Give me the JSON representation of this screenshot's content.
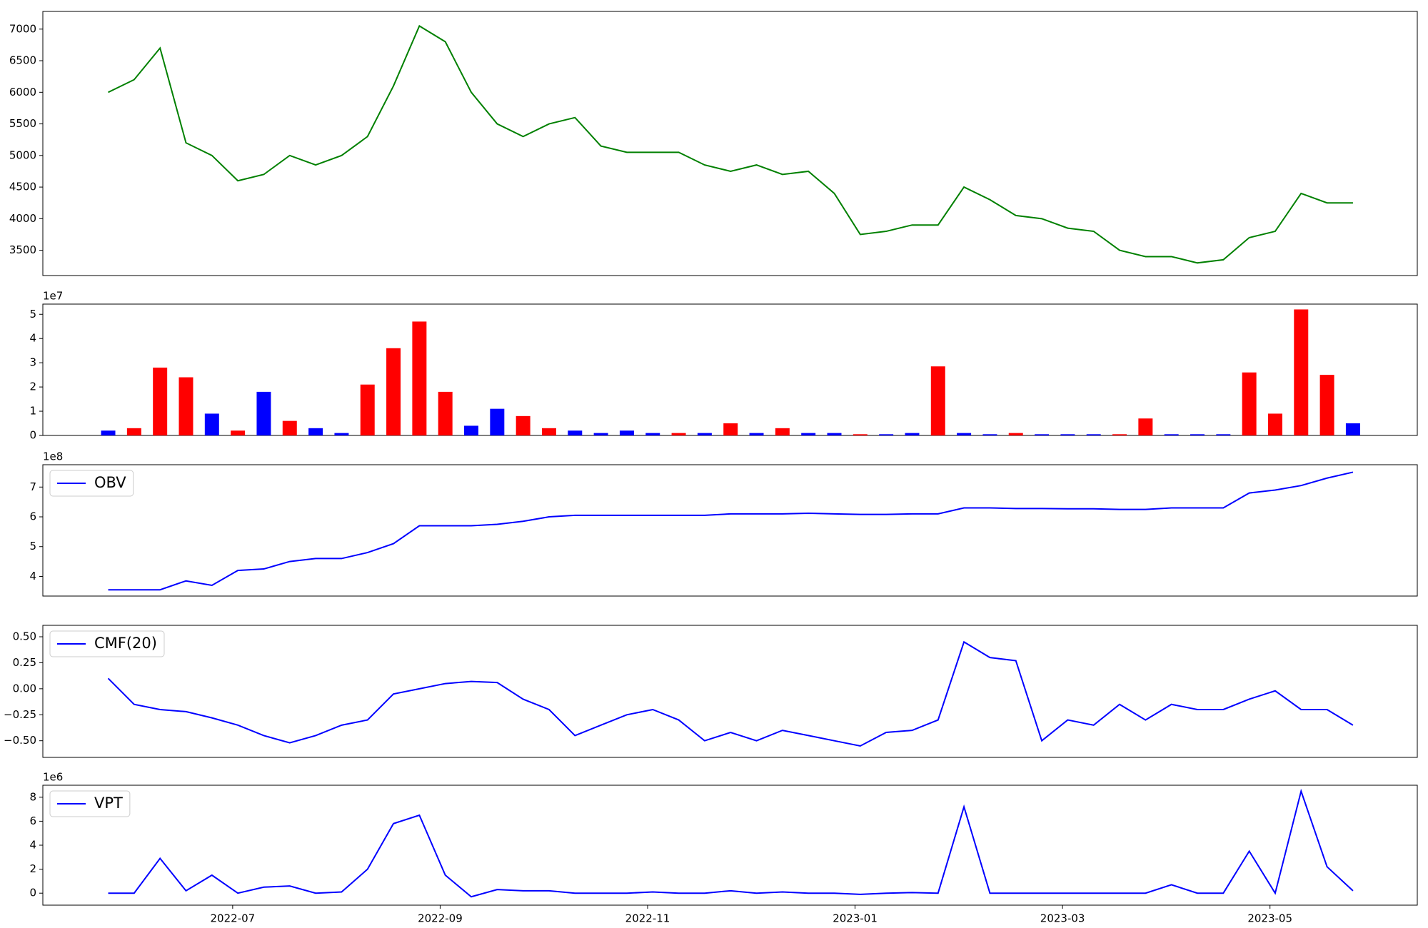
{
  "chart_data": [
    {
      "type": "line",
      "x": [
        5.8,
        6.05,
        6.3,
        6.55,
        6.8,
        7.05,
        7.3,
        7.55,
        7.8,
        8.05,
        8.3,
        8.55,
        8.8,
        9.05,
        9.3,
        9.55,
        9.8,
        10.05,
        10.3,
        10.55,
        10.8,
        11.05,
        11.3,
        11.55,
        11.8,
        12.05,
        12.3,
        12.55,
        12.8,
        13.05,
        13.3,
        13.55,
        13.8,
        14.05,
        14.3,
        14.55,
        14.8,
        15.05,
        15.3,
        15.55,
        15.8,
        16.05,
        16.3,
        16.55,
        16.8,
        17.05,
        17.3,
        17.55,
        17.8
      ],
      "series": [
        {
          "color": "green",
          "values": [
            6000,
            6200,
            6700,
            5200,
            5000,
            4600,
            4700,
            5000,
            4850,
            5000,
            5300,
            6100,
            7050,
            6800,
            6000,
            5500,
            5300,
            5500,
            5600,
            5150,
            5050,
            5050,
            5050,
            4850,
            4750,
            4850,
            4700,
            4750,
            4400,
            3750,
            3800,
            3900,
            3900,
            4500,
            4300,
            4050,
            4000,
            3850,
            3800,
            3500,
            3400,
            3400,
            3300,
            3350,
            3700,
            3800,
            4400,
            4250,
            4250
          ]
        }
      ],
      "xlim": [
        5.17,
        18.42
      ],
      "ylim": [
        3100,
        7280
      ],
      "yticks": [
        3500,
        4000,
        4500,
        5000,
        5500,
        6000,
        6500,
        7000
      ]
    },
    {
      "type": "bar",
      "offset_label": "1e7",
      "x": [
        5.8,
        6.05,
        6.3,
        6.55,
        6.8,
        7.05,
        7.3,
        7.55,
        7.8,
        8.05,
        8.3,
        8.55,
        8.8,
        9.05,
        9.3,
        9.55,
        9.8,
        10.05,
        10.3,
        10.55,
        10.8,
        11.05,
        11.3,
        11.55,
        11.8,
        12.05,
        12.3,
        12.55,
        12.8,
        13.05,
        13.3,
        13.55,
        13.8,
        14.05,
        14.3,
        14.55,
        14.8,
        15.05,
        15.3,
        15.55,
        15.8,
        16.05,
        16.3,
        16.55,
        16.8,
        17.05,
        17.3,
        17.55,
        17.8
      ],
      "values": [
        0.2,
        0.3,
        2.8,
        2.4,
        0.9,
        0.2,
        1.8,
        0.6,
        0.3,
        0.1,
        2.1,
        3.6,
        4.7,
        1.8,
        0.4,
        1.1,
        0.8,
        0.3,
        0.2,
        0.1,
        0.2,
        0.1,
        0.1,
        0.1,
        0.5,
        0.1,
        0.3,
        0.1,
        0.1,
        0.05,
        0.05,
        0.1,
        2.85,
        0.1,
        0.05,
        0.1,
        0.05,
        0.05,
        0.05,
        0.05,
        0.7,
        0.05,
        0.05,
        0.05,
        2.6,
        0.9,
        5.2,
        2.5,
        0.5
      ],
      "colors": [
        "blue",
        "red",
        "red",
        "red",
        "blue",
        "red",
        "blue",
        "red",
        "blue",
        "blue",
        "red",
        "red",
        "red",
        "red",
        "blue",
        "blue",
        "red",
        "red",
        "blue",
        "blue",
        "blue",
        "blue",
        "red",
        "blue",
        "red",
        "blue",
        "red",
        "blue",
        "blue",
        "red",
        "blue",
        "blue",
        "red",
        "blue",
        "blue",
        "red",
        "blue",
        "blue",
        "blue",
        "red",
        "red",
        "blue",
        "blue",
        "blue",
        "red",
        "red",
        "red",
        "red",
        "blue"
      ],
      "xlim": [
        5.17,
        18.42
      ],
      "ylim": [
        0,
        5.42
      ],
      "yticks": [
        0,
        1,
        2,
        3,
        4,
        5
      ]
    },
    {
      "type": "line",
      "offset_label": "1e8",
      "legend": "upper left",
      "x": [
        5.8,
        6.05,
        6.3,
        6.55,
        6.8,
        7.05,
        7.3,
        7.55,
        7.8,
        8.05,
        8.3,
        8.55,
        8.8,
        9.05,
        9.3,
        9.55,
        9.8,
        10.05,
        10.3,
        10.55,
        10.8,
        11.05,
        11.3,
        11.55,
        11.8,
        12.05,
        12.3,
        12.55,
        12.8,
        13.05,
        13.3,
        13.55,
        13.8,
        14.05,
        14.3,
        14.55,
        14.8,
        15.05,
        15.3,
        15.55,
        15.8,
        16.05,
        16.3,
        16.55,
        16.8,
        17.05,
        17.3,
        17.55,
        17.8
      ],
      "series": [
        {
          "name": "OBV",
          "color": "blue",
          "values": [
            3.55,
            3.55,
            3.55,
            3.85,
            3.7,
            4.2,
            4.25,
            4.5,
            4.6,
            4.6,
            4.8,
            5.1,
            5.7,
            5.7,
            5.7,
            5.75,
            5.85,
            6.0,
            6.05,
            6.05,
            6.05,
            6.05,
            6.05,
            6.05,
            6.1,
            6.1,
            6.1,
            6.12,
            6.1,
            6.08,
            6.08,
            6.1,
            6.1,
            6.3,
            6.3,
            6.28,
            6.28,
            6.27,
            6.27,
            6.25,
            6.25,
            6.3,
            6.3,
            6.3,
            6.8,
            6.9,
            7.05,
            7.3,
            7.5
          ]
        }
      ],
      "xlim": [
        5.17,
        18.42
      ],
      "ylim": [
        3.34,
        7.75
      ],
      "yticks": [
        4,
        5,
        6,
        7
      ]
    },
    {
      "type": "line",
      "legend": "upper left",
      "x": [
        5.8,
        6.05,
        6.3,
        6.55,
        6.8,
        7.05,
        7.3,
        7.55,
        7.8,
        8.05,
        8.3,
        8.55,
        8.8,
        9.05,
        9.3,
        9.55,
        9.8,
        10.05,
        10.3,
        10.55,
        10.8,
        11.05,
        11.3,
        11.55,
        11.8,
        12.05,
        12.3,
        12.55,
        12.8,
        13.05,
        13.3,
        13.55,
        13.8,
        14.05,
        14.3,
        14.55,
        14.8,
        15.05,
        15.3,
        15.55,
        15.8,
        16.05,
        16.3,
        16.55,
        16.8,
        17.05,
        17.3,
        17.55,
        17.8
      ],
      "series": [
        {
          "name": "CMF(20)",
          "color": "blue",
          "values": [
            0.1,
            -0.15,
            -0.2,
            -0.22,
            -0.28,
            -0.35,
            -0.45,
            -0.52,
            -0.45,
            -0.35,
            -0.3,
            -0.05,
            0.0,
            0.05,
            0.07,
            0.06,
            -0.1,
            -0.2,
            -0.45,
            -0.35,
            -0.25,
            -0.2,
            -0.3,
            -0.5,
            -0.42,
            -0.5,
            -0.4,
            -0.45,
            -0.5,
            -0.55,
            -0.42,
            -0.4,
            -0.3,
            0.45,
            0.3,
            0.27,
            -0.5,
            -0.3,
            -0.35,
            -0.15,
            -0.3,
            -0.15,
            -0.2,
            -0.2,
            -0.1,
            -0.02,
            -0.2,
            -0.2,
            -0.35
          ]
        }
      ],
      "xlim": [
        5.17,
        18.42
      ],
      "ylim": [
        -0.66,
        0.61
      ],
      "yticks": [
        {
          "value": -0.5,
          "label": "−0.50"
        },
        {
          "value": -0.25,
          "label": "−0.25"
        },
        {
          "value": 0,
          "label": "0.00"
        },
        {
          "value": 0.25,
          "label": "0.25"
        },
        {
          "value": 0.5,
          "label": "0.50"
        }
      ]
    },
    {
      "type": "line",
      "offset_label": "1e6",
      "legend": "upper left",
      "x": [
        5.8,
        6.05,
        6.3,
        6.55,
        6.8,
        7.05,
        7.3,
        7.55,
        7.8,
        8.05,
        8.3,
        8.55,
        8.8,
        9.05,
        9.3,
        9.55,
        9.8,
        10.05,
        10.3,
        10.55,
        10.8,
        11.05,
        11.3,
        11.55,
        11.8,
        12.05,
        12.3,
        12.55,
        12.8,
        13.05,
        13.3,
        13.55,
        13.8,
        14.05,
        14.3,
        14.55,
        14.8,
        15.05,
        15.3,
        15.55,
        15.8,
        16.05,
        16.3,
        16.55,
        16.8,
        17.05,
        17.3,
        17.55,
        17.8
      ],
      "series": [
        {
          "name": "VPT",
          "color": "blue",
          "values": [
            0,
            0,
            2.9,
            0.2,
            1.5,
            0,
            0.5,
            0.6,
            0,
            0.1,
            2.0,
            5.8,
            6.5,
            1.5,
            -0.3,
            0.3,
            0.2,
            0.2,
            0,
            0,
            0,
            0.1,
            0,
            0,
            0.2,
            0,
            0.1,
            0,
            0,
            -0.1,
            0,
            0.05,
            0,
            7.2,
            0,
            0,
            0,
            0,
            0,
            0,
            0,
            0.7,
            0,
            0,
            3.5,
            0,
            8.5,
            2.2,
            0.2
          ]
        }
      ],
      "xlim": [
        5.17,
        18.42
      ],
      "ylim": [
        -1,
        9
      ],
      "yticks": [
        0,
        2,
        4,
        6,
        8
      ],
      "xticks": [
        {
          "value": 7,
          "label": "2022-07"
        },
        {
          "value": 9,
          "label": "2022-09"
        },
        {
          "value": 11,
          "label": "2022-11"
        },
        {
          "value": 13,
          "label": "2023-01"
        },
        {
          "value": 15,
          "label": "2023-03"
        },
        {
          "value": 17,
          "label": "2023-05"
        }
      ]
    }
  ]
}
